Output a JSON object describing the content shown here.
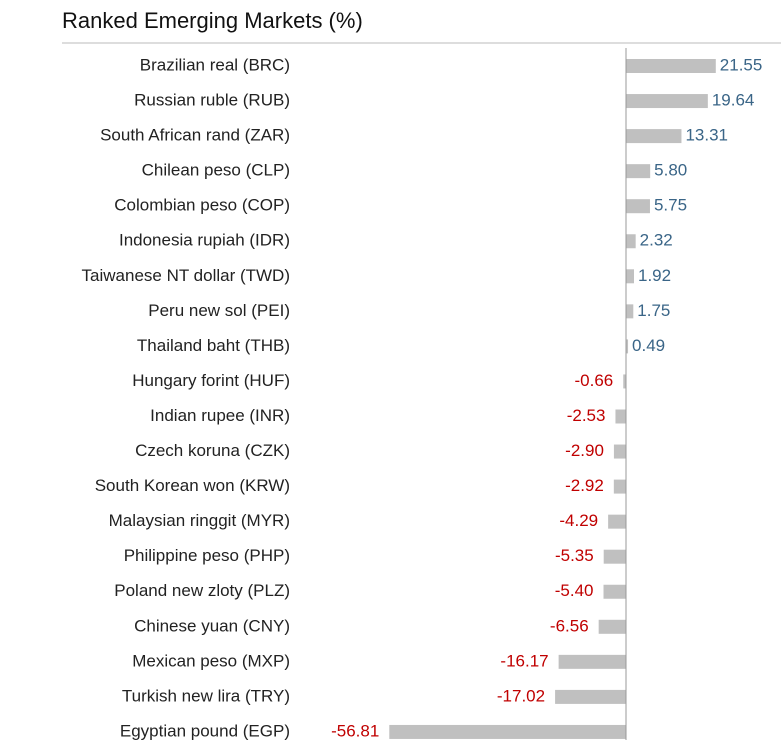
{
  "chart_data": {
    "type": "hbar",
    "title": "Ranked Emerging Markets (%)",
    "categories": [
      "Brazilian real (BRC)",
      "Russian ruble (RUB)",
      "South African rand (ZAR)",
      "Chilean peso (CLP)",
      "Colombian peso (COP)",
      "Indonesia rupiah (IDR)",
      "Taiwanese NT dollar (TWD)",
      "Peru new sol (PEI)",
      "Thailand baht (THB)",
      "Hungary forint (HUF)",
      "Indian rupee (INR)",
      "Czech koruna (CZK)",
      "South Korean won (KRW)",
      "Malaysian ringgit (MYR)",
      "Philippine peso (PHP)",
      "Poland new zloty (PLZ)",
      "Chinese yuan (CNY)",
      "Mexican peso (MXP)",
      "Turkish new lira (TRY)",
      "Egyptian pound (EGP)"
    ],
    "values": [
      21.55,
      19.64,
      13.31,
      5.8,
      5.75,
      2.32,
      1.92,
      1.75,
      0.49,
      -0.66,
      -2.53,
      -2.9,
      -2.92,
      -4.29,
      -5.35,
      -5.4,
      -6.56,
      -16.17,
      -17.02,
      -56.81
    ],
    "value_labels": [
      "21.55",
      "19.64",
      "13.31",
      "5.80",
      "5.75",
      "2.32",
      "1.92",
      "1.75",
      "0.49",
      "-0.66",
      "-2.53",
      "-2.90",
      "-2.92",
      "-4.29",
      "-5.35",
      "-5.40",
      "-6.56",
      "-16.17",
      "-17.02",
      "-56.81"
    ],
    "color": "#c0c0c0",
    "xlim": [
      -60,
      30
    ]
  }
}
